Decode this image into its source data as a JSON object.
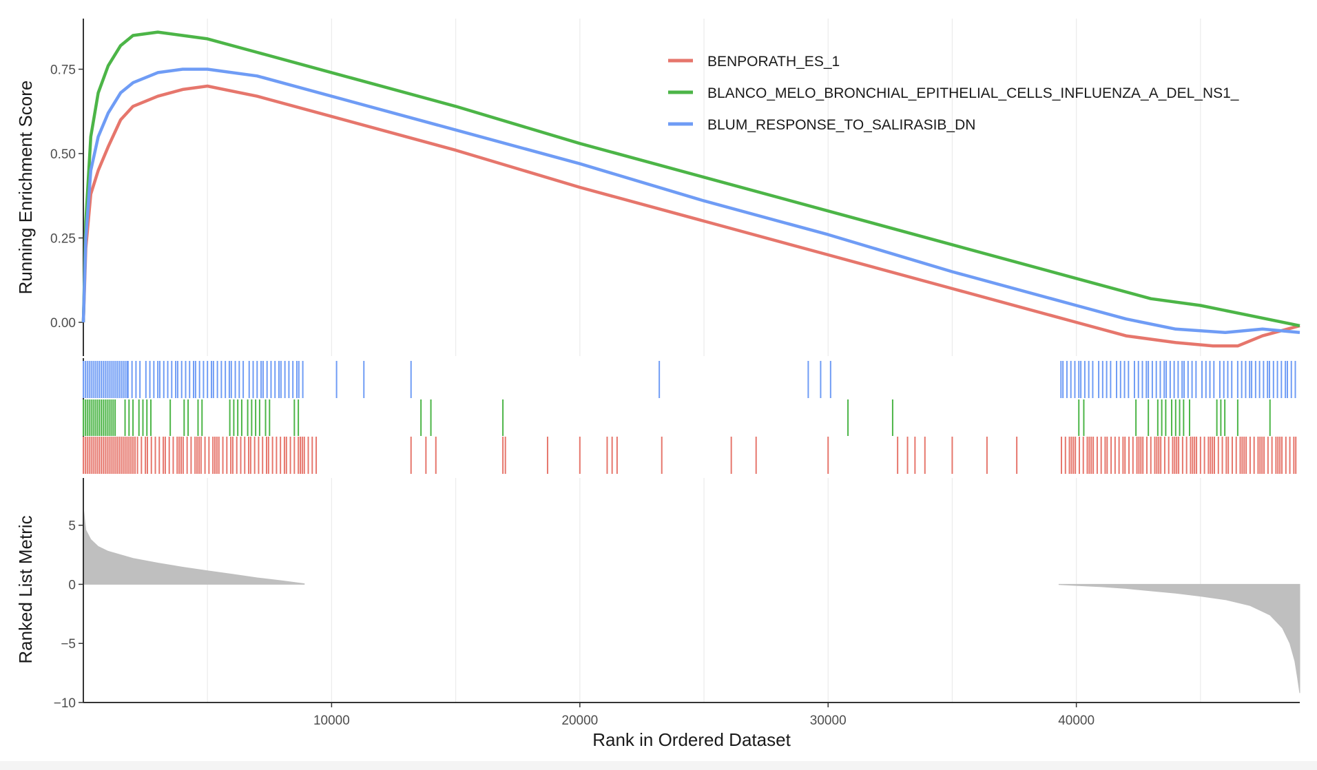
{
  "chart_data": {
    "type": "line",
    "title": "",
    "xlabel": "Rank in Ordered Dataset",
    "x_ticks": [
      10000,
      20000,
      30000,
      40000
    ],
    "xlim": [
      0,
      49000
    ],
    "colors": {
      "benporath": "#e6766c",
      "blanco": "#4cb547",
      "blum": "#6f9cf5",
      "metric_fill": "#bfbfbf"
    },
    "es_panel": {
      "ylabel": "Running Enrichment Score",
      "y_ticks": [
        0.0,
        0.25,
        0.5,
        0.75
      ],
      "ylim": [
        -0.1,
        0.9
      ],
      "legend_position": "top-right",
      "series": [
        {
          "key": "benporath",
          "name": "BENPORATH_ES_1",
          "x": [
            0,
            100,
            300,
            600,
            1000,
            1500,
            2000,
            3000,
            4000,
            5000,
            7000,
            10000,
            15000,
            20000,
            25000,
            30000,
            35000,
            40000,
            42000,
            44000,
            45500,
            46500,
            47500,
            49000
          ],
          "y": [
            0,
            0.22,
            0.38,
            0.45,
            0.52,
            0.6,
            0.64,
            0.67,
            0.69,
            0.7,
            0.67,
            0.61,
            0.51,
            0.4,
            0.3,
            0.2,
            0.1,
            -0.0,
            -0.04,
            -0.06,
            -0.07,
            -0.07,
            -0.04,
            -0.01
          ]
        },
        {
          "key": "blanco",
          "name": "BLANCO_MELO_BRONCHIAL_EPITHELIAL_CELLS_INFLUENZA_A_DEL_NS1_",
          "x": [
            0,
            100,
            300,
            600,
            1000,
            1500,
            2000,
            3000,
            4000,
            5000,
            7000,
            10000,
            15000,
            20000,
            25000,
            30000,
            35000,
            40000,
            43000,
            45000,
            47000,
            49000
          ],
          "y": [
            0,
            0.3,
            0.55,
            0.68,
            0.76,
            0.82,
            0.85,
            0.86,
            0.85,
            0.84,
            0.8,
            0.74,
            0.64,
            0.53,
            0.43,
            0.33,
            0.23,
            0.13,
            0.07,
            0.05,
            0.02,
            -0.01
          ]
        },
        {
          "key": "blum",
          "name": "BLUM_RESPONSE_TO_SALIRASIB_DN",
          "x": [
            0,
            100,
            300,
            600,
            1000,
            1500,
            2000,
            3000,
            4000,
            5000,
            7000,
            10000,
            15000,
            20000,
            25000,
            30000,
            35000,
            40000,
            42000,
            44000,
            46000,
            47500,
            49000
          ],
          "y": [
            0,
            0.25,
            0.45,
            0.55,
            0.62,
            0.68,
            0.71,
            0.74,
            0.75,
            0.75,
            0.73,
            0.67,
            0.57,
            0.47,
            0.36,
            0.26,
            0.15,
            0.05,
            0.01,
            -0.02,
            -0.03,
            -0.02,
            -0.03
          ]
        }
      ]
    },
    "hits_panel": {
      "rows": [
        {
          "key": "blum",
          "positions": [
            10200,
            11300,
            13200,
            23200,
            29200,
            29700,
            30100
          ]
        },
        {
          "key": "blanco",
          "positions": [
            13600,
            14000,
            16900,
            30800,
            32600,
            40100,
            40300,
            42400,
            42900,
            46500,
            47800
          ]
        },
        {
          "key": "benporath",
          "positions": [
            13200,
            13800,
            14200,
            16900,
            17000,
            18700,
            20000,
            21100,
            21300,
            21500,
            23300,
            26100,
            27100,
            30000,
            32800,
            33200,
            33500,
            33900,
            35000,
            36400,
            37600
          ]
        }
      ],
      "dense_segments": [
        {
          "key": "blum",
          "start": 0,
          "end": 1800,
          "density": 1.0
        },
        {
          "key": "blum",
          "start": 1800,
          "end": 8900,
          "density": 0.55
        },
        {
          "key": "blum",
          "start": 39300,
          "end": 48900,
          "density": 0.5
        },
        {
          "key": "blanco",
          "start": 0,
          "end": 1200,
          "density": 1.0
        },
        {
          "key": "blanco",
          "start": 1200,
          "end": 2800,
          "density": 0.4
        },
        {
          "key": "blanco",
          "start": 3500,
          "end": 4900,
          "density": 0.3
        },
        {
          "key": "blanco",
          "start": 5900,
          "end": 7600,
          "density": 0.45
        },
        {
          "key": "blanco",
          "start": 8500,
          "end": 8800,
          "density": 0.3
        },
        {
          "key": "blanco",
          "start": 43200,
          "end": 44700,
          "density": 0.45
        },
        {
          "key": "blanco",
          "start": 45500,
          "end": 46200,
          "density": 0.35
        },
        {
          "key": "benporath",
          "start": 0,
          "end": 2100,
          "density": 1.0
        },
        {
          "key": "benporath",
          "start": 2100,
          "end": 9400,
          "density": 0.6
        },
        {
          "key": "benporath",
          "start": 39400,
          "end": 48900,
          "density": 0.65
        }
      ]
    },
    "metric_panel": {
      "ylabel": "Ranked List Metric",
      "y_ticks": [
        5,
        0,
        -5,
        -10
      ],
      "ylim": [
        -10,
        9
      ],
      "positive_range": [
        0,
        8900
      ],
      "negative_range": [
        39300,
        49000
      ],
      "positive_curve": [
        [
          0,
          6.5
        ],
        [
          100,
          4.6
        ],
        [
          300,
          3.8
        ],
        [
          600,
          3.2
        ],
        [
          1000,
          2.8
        ],
        [
          2000,
          2.2
        ],
        [
          3000,
          1.8
        ],
        [
          4000,
          1.45
        ],
        [
          5000,
          1.15
        ],
        [
          6000,
          0.85
        ],
        [
          7000,
          0.55
        ],
        [
          8000,
          0.3
        ],
        [
          8900,
          0.05
        ]
      ],
      "negative_curve": [
        [
          39300,
          -0.02
        ],
        [
          40000,
          -0.1
        ],
        [
          41000,
          -0.2
        ],
        [
          42000,
          -0.35
        ],
        [
          43000,
          -0.55
        ],
        [
          44000,
          -0.75
        ],
        [
          45000,
          -1.0
        ],
        [
          46000,
          -1.3
        ],
        [
          47000,
          -1.8
        ],
        [
          47800,
          -2.6
        ],
        [
          48300,
          -3.7
        ],
        [
          48600,
          -5.0
        ],
        [
          48800,
          -6.5
        ],
        [
          48900,
          -7.8
        ],
        [
          49000,
          -9.2
        ]
      ]
    }
  }
}
